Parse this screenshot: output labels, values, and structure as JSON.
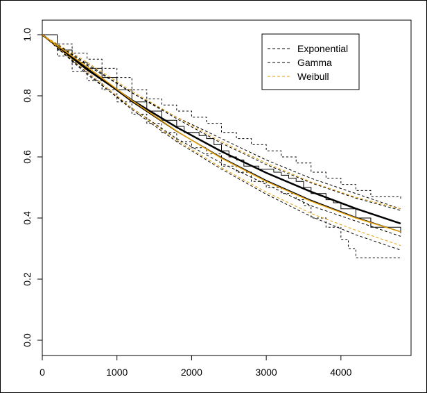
{
  "chart_data": {
    "type": "line",
    "title": "",
    "xlabel": "",
    "ylabel": "",
    "xlim": [
      0,
      4800
    ],
    "ylim": [
      0,
      1.0
    ],
    "xticks": [
      0,
      1000,
      2000,
      3000,
      4000
    ],
    "yticks": [
      0.0,
      0.2,
      0.4,
      0.6,
      0.8,
      1.0
    ],
    "xtick_labels": [
      "0",
      "1000",
      "2000",
      "3000",
      "4000"
    ],
    "ytick_labels": [
      "0.0",
      "0.2",
      "0.4",
      "0.6",
      "0.8",
      "1.0"
    ],
    "grid": false,
    "legend": {
      "placement": "top-right",
      "entries": [
        {
          "label": "Exponential",
          "color": "#000000",
          "dash": "dashed"
        },
        {
          "label": "Gamma",
          "color": "#000000",
          "dash": "dashed"
        },
        {
          "label": "Weibull",
          "color": "#e69f00",
          "dash": "dashed"
        }
      ]
    },
    "step_series": {
      "km_estimate": {
        "x": [
          0,
          200,
          400,
          600,
          800,
          1000,
          1200,
          1400,
          1600,
          1800,
          1900,
          2000,
          2100,
          2200,
          2300,
          2400,
          2500,
          2600,
          2700,
          2800,
          2900,
          3000,
          3100,
          3200,
          3300,
          3400,
          3500,
          3600,
          3800,
          3900,
          4000,
          4200,
          4400,
          4800
        ],
        "y": [
          1.0,
          0.95,
          0.91,
          0.89,
          0.86,
          0.82,
          0.78,
          0.75,
          0.72,
          0.7,
          0.68,
          0.68,
          0.67,
          0.66,
          0.64,
          0.62,
          0.6,
          0.59,
          0.57,
          0.57,
          0.56,
          0.56,
          0.55,
          0.54,
          0.53,
          0.52,
          0.5,
          0.48,
          0.46,
          0.45,
          0.43,
          0.4,
          0.37,
          0.35
        ]
      },
      "km_upper": {
        "x": [
          0,
          200,
          400,
          600,
          800,
          1000,
          1200,
          1400,
          1600,
          1800,
          2000,
          2200,
          2400,
          2600,
          2800,
          3000,
          3200,
          3400,
          3600,
          3800,
          4000,
          4200,
          4400,
          4800
        ],
        "y": [
          1.0,
          0.97,
          0.94,
          0.92,
          0.89,
          0.86,
          0.82,
          0.79,
          0.77,
          0.75,
          0.73,
          0.71,
          0.68,
          0.66,
          0.64,
          0.62,
          0.6,
          0.58,
          0.55,
          0.53,
          0.51,
          0.49,
          0.47,
          0.46
        ]
      },
      "km_lower": {
        "x": [
          0,
          200,
          400,
          600,
          800,
          1000,
          1200,
          1400,
          1600,
          1800,
          2000,
          2200,
          2400,
          2600,
          2800,
          3000,
          3200,
          3400,
          3500,
          3600,
          3800,
          4000,
          4100,
          4200,
          4800
        ],
        "y": [
          1.0,
          0.93,
          0.88,
          0.85,
          0.82,
          0.78,
          0.74,
          0.71,
          0.68,
          0.65,
          0.63,
          0.61,
          0.57,
          0.55,
          0.52,
          0.5,
          0.48,
          0.46,
          0.44,
          0.4,
          0.37,
          0.33,
          0.3,
          0.27,
          0.27
        ]
      }
    },
    "series": [
      {
        "key": "exp_fit",
        "color": "#000000",
        "width": 2.5,
        "dash": "",
        "x": [
          0,
          600,
          1200,
          1800,
          2400,
          3000,
          3600,
          4200,
          4800
        ],
        "y": [
          1.0,
          0.886,
          0.786,
          0.697,
          0.618,
          0.548,
          0.486,
          0.431,
          0.382
        ]
      },
      {
        "key": "exp_upper",
        "color": "#000000",
        "width": 1,
        "dash": "4,3",
        "x": [
          0,
          600,
          1200,
          1800,
          2400,
          3000,
          3600,
          4200,
          4800
        ],
        "y": [
          1.0,
          0.9,
          0.81,
          0.73,
          0.66,
          0.59,
          0.53,
          0.48,
          0.43
        ]
      },
      {
        "key": "exp_lower",
        "color": "#000000",
        "width": 1,
        "dash": "4,3",
        "x": [
          0,
          600,
          1200,
          1800,
          2400,
          3000,
          3600,
          4200,
          4800
        ],
        "y": [
          1.0,
          0.87,
          0.76,
          0.66,
          0.58,
          0.51,
          0.44,
          0.39,
          0.34
        ]
      },
      {
        "key": "gamma_fit",
        "color": "#000000",
        "width": 1.5,
        "dash": "",
        "x": [
          0,
          600,
          1200,
          1800,
          2400,
          3000,
          3600,
          4200,
          4800
        ],
        "y": [
          1.0,
          0.89,
          0.781,
          0.684,
          0.598,
          0.523,
          0.458,
          0.402,
          0.355
        ]
      },
      {
        "key": "gamma_upper",
        "color": "#000000",
        "width": 1,
        "dash": "4,3",
        "x": [
          0,
          600,
          1200,
          1800,
          2400,
          3000,
          3600,
          4200,
          4800
        ],
        "y": [
          1.0,
          0.905,
          0.81,
          0.725,
          0.645,
          0.575,
          0.515,
          0.465,
          0.425
        ]
      },
      {
        "key": "gamma_lower",
        "color": "#000000",
        "width": 1,
        "dash": "4,3",
        "x": [
          0,
          600,
          1200,
          1800,
          2400,
          3000,
          3600,
          4200,
          4800
        ],
        "y": [
          1.0,
          0.875,
          0.755,
          0.65,
          0.56,
          0.478,
          0.405,
          0.345,
          0.295
        ]
      },
      {
        "key": "weibull_fit",
        "color": "#e69f00",
        "width": 1.5,
        "dash": "",
        "x": [
          0,
          600,
          1200,
          1800,
          2400,
          3000,
          3600,
          4200,
          4800
        ],
        "y": [
          1.0,
          0.895,
          0.785,
          0.685,
          0.596,
          0.52,
          0.455,
          0.4,
          0.355
        ]
      },
      {
        "key": "weibull_upper",
        "color": "#e69f00",
        "width": 1,
        "dash": "4,3",
        "x": [
          0,
          600,
          1200,
          1800,
          2400,
          3000,
          3600,
          4200,
          4800
        ],
        "y": [
          1.0,
          0.91,
          0.815,
          0.73,
          0.65,
          0.58,
          0.518,
          0.468,
          0.43
        ]
      },
      {
        "key": "weibull_lower",
        "color": "#e69f00",
        "width": 1,
        "dash": "4,3",
        "x": [
          0,
          600,
          1200,
          1800,
          2400,
          3000,
          3600,
          4200,
          4800
        ],
        "y": [
          1.0,
          0.88,
          0.76,
          0.655,
          0.565,
          0.485,
          0.415,
          0.36,
          0.31
        ]
      }
    ]
  }
}
